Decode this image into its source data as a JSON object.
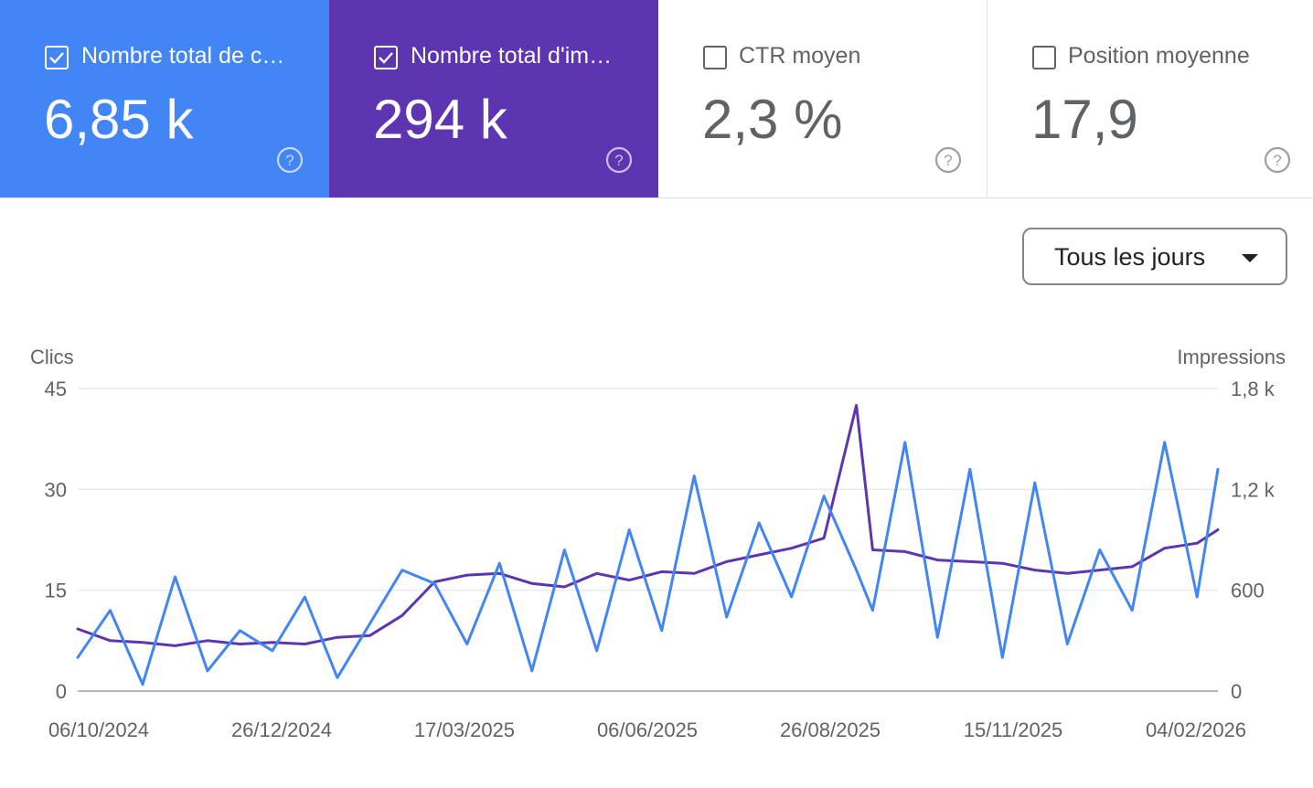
{
  "cards": [
    {
      "label": "Nombre total de c…",
      "value": "6,85 k",
      "checked": true,
      "color": "#4285f4"
    },
    {
      "label": "Nombre total d'im…",
      "value": "294 k",
      "checked": true,
      "color": "#5e35b1"
    },
    {
      "label": "CTR moyen",
      "value": "2,3 %",
      "checked": false
    },
    {
      "label": "Position moyenne",
      "value": "17,9",
      "checked": false
    }
  ],
  "period_selector": {
    "label": "Tous les jours"
  },
  "chart_data": {
    "type": "line",
    "title": "",
    "left_axis": {
      "label": "Clics",
      "ticks": [
        "0",
        "15",
        "30",
        "45"
      ],
      "range": [
        0,
        45
      ]
    },
    "right_axis": {
      "label": "Impressions",
      "ticks": [
        "0",
        "600",
        "1,2 k",
        "1,8 k"
      ],
      "range": [
        0,
        1800
      ]
    },
    "x_ticks": [
      "06/10/2024",
      "26/12/2024",
      "17/03/2025",
      "06/06/2025",
      "26/08/2025",
      "15/11/2025",
      "04/02/2026"
    ],
    "x_range": [
      "2024-10-06",
      "2026-02-10"
    ],
    "grid": true,
    "series": [
      {
        "axis": "right",
        "color": "#5e35b1",
        "points": [
          [
            "2024-10-06",
            370
          ],
          [
            "2024-10-20",
            300
          ],
          [
            "2024-11-03",
            290
          ],
          [
            "2024-11-17",
            270
          ],
          [
            "2024-12-01",
            300
          ],
          [
            "2024-12-15",
            280
          ],
          [
            "2024-12-29",
            290
          ],
          [
            "2025-01-12",
            280
          ],
          [
            "2025-01-26",
            320
          ],
          [
            "2025-02-09",
            330
          ],
          [
            "2025-02-23",
            450
          ],
          [
            "2025-03-09",
            650
          ],
          [
            "2025-03-23",
            690
          ],
          [
            "2025-04-06",
            700
          ],
          [
            "2025-04-20",
            640
          ],
          [
            "2025-05-04",
            620
          ],
          [
            "2025-05-18",
            700
          ],
          [
            "2025-06-01",
            660
          ],
          [
            "2025-06-15",
            710
          ],
          [
            "2025-06-29",
            700
          ],
          [
            "2025-07-13",
            770
          ],
          [
            "2025-07-27",
            810
          ],
          [
            "2025-08-10",
            850
          ],
          [
            "2025-08-24",
            910
          ],
          [
            "2025-09-07",
            1700
          ],
          [
            "2025-09-14",
            840
          ],
          [
            "2025-09-28",
            830
          ],
          [
            "2025-10-12",
            780
          ],
          [
            "2025-10-26",
            770
          ],
          [
            "2025-11-09",
            760
          ],
          [
            "2025-11-23",
            720
          ],
          [
            "2025-12-07",
            700
          ],
          [
            "2025-12-21",
            720
          ],
          [
            "2026-01-04",
            740
          ],
          [
            "2026-01-18",
            850
          ],
          [
            "2026-02-01",
            880
          ],
          [
            "2026-02-10",
            960
          ]
        ]
      },
      {
        "axis": "left",
        "color": "#4285f4",
        "points": [
          [
            "2024-10-06",
            5
          ],
          [
            "2024-10-20",
            12
          ],
          [
            "2024-11-03",
            1
          ],
          [
            "2024-11-17",
            17
          ],
          [
            "2024-12-01",
            3
          ],
          [
            "2024-12-15",
            9
          ],
          [
            "2024-12-29",
            6
          ],
          [
            "2025-01-12",
            14
          ],
          [
            "2025-01-26",
            2
          ],
          [
            "2025-02-09",
            10
          ],
          [
            "2025-02-23",
            18
          ],
          [
            "2025-03-09",
            16
          ],
          [
            "2025-03-23",
            7
          ],
          [
            "2025-04-06",
            19
          ],
          [
            "2025-04-20",
            3
          ],
          [
            "2025-05-04",
            21
          ],
          [
            "2025-05-18",
            6
          ],
          [
            "2025-06-01",
            24
          ],
          [
            "2025-06-15",
            9
          ],
          [
            "2025-06-29",
            32
          ],
          [
            "2025-07-13",
            11
          ],
          [
            "2025-07-27",
            25
          ],
          [
            "2025-08-10",
            14
          ],
          [
            "2025-08-24",
            29
          ],
          [
            "2025-09-07",
            18
          ],
          [
            "2025-09-14",
            12
          ],
          [
            "2025-09-28",
            37
          ],
          [
            "2025-10-12",
            8
          ],
          [
            "2025-10-26",
            33
          ],
          [
            "2025-11-09",
            5
          ],
          [
            "2025-11-23",
            31
          ],
          [
            "2025-12-07",
            7
          ],
          [
            "2025-12-21",
            21
          ],
          [
            "2026-01-04",
            12
          ],
          [
            "2026-01-18",
            37
          ],
          [
            "2026-02-01",
            14
          ],
          [
            "2026-02-10",
            33
          ]
        ]
      }
    ]
  }
}
